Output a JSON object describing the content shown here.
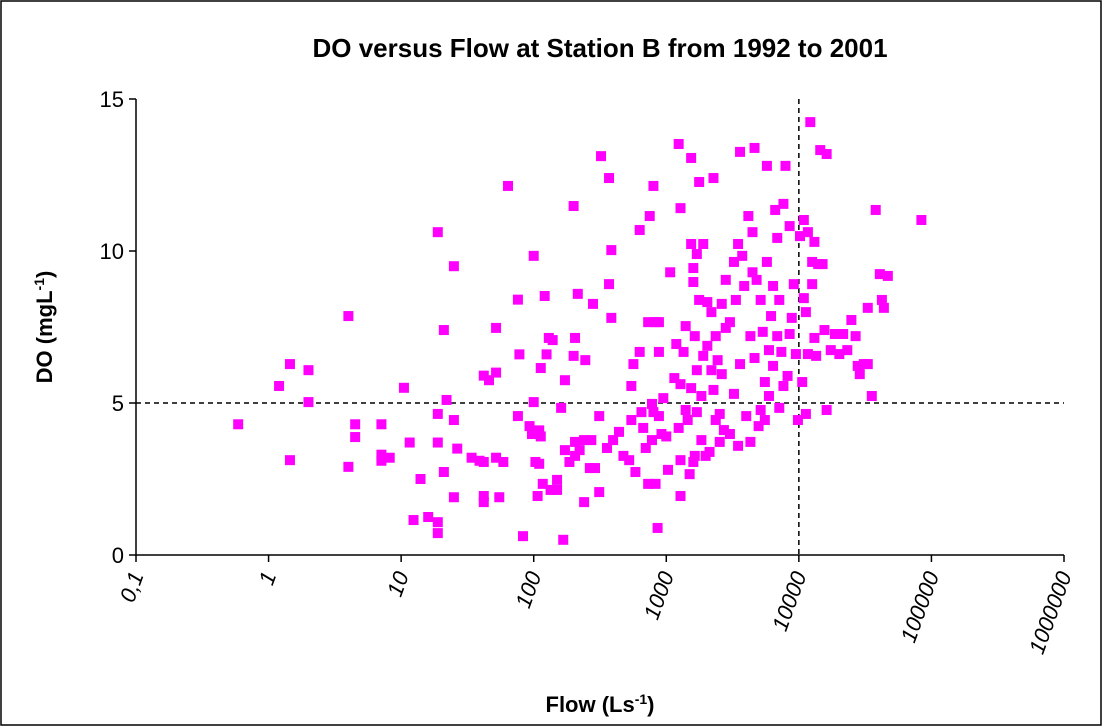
{
  "chart_data": {
    "type": "scatter",
    "title": "DO versus Flow at Station B from 1992 to 2001",
    "xlabel": [
      "Flow (Ls",
      "-1",
      ")"
    ],
    "ylabel": [
      "DO (mgL",
      "-1",
      ")"
    ],
    "xscale": "log",
    "xlim": [
      0.1,
      1000000
    ],
    "xticks": [
      {
        "value": 0.1,
        "label": "0,1"
      },
      1,
      10,
      100,
      1000,
      10000,
      100000,
      1000000
    ],
    "ylim": [
      0,
      15
    ],
    "yticks": [
      0,
      5,
      10,
      15
    ],
    "color": "#ff00ff",
    "reference_lines": [
      {
        "axis": "x",
        "value": 10000
      },
      {
        "axis": "y",
        "value": 5
      }
    ],
    "x": [
      0.59,
      1.2,
      1.45,
      1.45,
      2.0,
      2.0,
      4.0,
      4.0,
      4.5,
      4.5,
      7.1,
      7.1,
      7.1,
      8.2,
      10.5,
      11.6,
      12.4,
      14,
      16,
      18.9,
      18.9,
      18.9,
      18.9,
      18.9,
      21,
      21,
      22,
      25,
      25,
      25,
      26.5,
      34,
      39,
      42,
      42,
      42,
      42,
      46,
      52,
      52,
      52,
      55,
      59,
      64,
      76,
      76,
      78,
      83,
      93,
      97,
      100,
      100,
      103,
      107,
      110,
      110,
      113,
      113,
      117,
      121,
      125,
      130,
      134,
      139,
      150,
      150,
      161,
      167,
      172,
      172,
      186,
      200,
      200,
      205,
      205,
      205,
      215,
      222,
      240,
      240,
      245,
      265,
      272,
      280,
      290,
      312,
      312,
      322,
      357,
      370,
      370,
      385,
      385,
      397,
      440,
      475,
      525,
      545,
      545,
      565,
      585,
      630,
      630,
      650,
      670,
      700,
      730,
      730,
      750,
      780,
      780,
      800,
      800,
      830,
      830,
      860,
      880,
      880,
      880,
      920,
      950,
      1000,
      1030,
      1070,
      1150,
      1190,
      1240,
      1240,
      1280,
      1280,
      1280,
      1280,
      1350,
      1400,
      1400,
      1450,
      1500,
      1540,
      1540,
      1540,
      1600,
      1600,
      1600,
      1640,
      1640,
      1700,
      1700,
      1700,
      1770,
      1770,
      1840,
      1840,
      1900,
      1900,
      1980,
      2040,
      2040,
      2120,
      2190,
      2190,
      2270,
      2270,
      2360,
      2360,
      2440,
      2530,
      2530,
      2620,
      2620,
      2720,
      2810,
      2810,
      3020,
      3020,
      3240,
      3240,
      3350,
      3480,
      3480,
      3600,
      3600,
      3740,
      3870,
      4010,
      4160,
      4310,
      4310,
      4470,
      4470,
      4630,
      4630,
      4800,
      4970,
      5150,
      5150,
      5340,
      5540,
      5540,
      5740,
      5740,
      5950,
      5950,
      6170,
      6390,
      6390,
      6630,
      6870,
      6870,
      7120,
      7120,
      7380,
      7650,
      7650,
      7930,
      8220,
      8520,
      8520,
      8840,
      9160,
      9500,
      9840,
      10200,
      10600,
      10900,
      10900,
      11300,
      11300,
      11700,
      11700,
      12200,
      12600,
      12600,
      13100,
      13100,
      13500,
      14000,
      14500,
      15100,
      15600,
      16200,
      16200,
      17400,
      18700,
      20200,
      21600,
      23200,
      24900,
      26800,
      27800,
      28800,
      30900,
      33100,
      33100,
      35500,
      38000,
      40800,
      42300,
      43800,
      46900,
      84000
    ],
    "values": [
      4.3,
      5.56,
      6.28,
      3.12,
      6.08,
      5.03,
      7.86,
      2.9,
      4.3,
      3.88,
      4.3,
      3.3,
      3.1,
      3.2,
      5.5,
      3.7,
      1.15,
      2.5,
      1.25,
      10.62,
      4.64,
      3.7,
      1.08,
      0.72,
      7.4,
      2.73,
      5.1,
      9.5,
      4.44,
      1.9,
      3.5,
      3.2,
      3.1,
      5.9,
      3.06,
      1.94,
      1.74,
      5.75,
      7.47,
      6.0,
      3.2,
      1.9,
      3.06,
      12.14,
      4.57,
      8.4,
      6.6,
      0.62,
      4.24,
      3.98,
      9.84,
      5.03,
      3.06,
      1.94,
      4.1,
      3.0,
      6.15,
      3.9,
      2.34,
      8.52,
      6.6,
      7.14,
      2.14,
      7.07,
      2.47,
      2.14,
      4.84,
      0.5,
      5.75,
      3.45,
      3.06,
      11.48,
      6.55,
      7.14,
      3.72,
      3.26,
      8.59,
      3.45,
      3.78,
      1.74,
      6.41,
      2.86,
      3.78,
      8.26,
      2.86,
      4.57,
      2.07,
      13.12,
      3.52,
      12.4,
      8.91,
      10.03,
      7.8,
      3.78,
      4.05,
      3.26,
      3.12,
      5.56,
      4.44,
      6.28,
      2.73,
      10.69,
      6.68,
      4.7,
      4.18,
      3.52,
      7.66,
      2.34,
      11.15,
      3.78,
      4.97,
      12.14,
      4.7,
      7.66,
      2.34,
      0.89,
      6.68,
      7.66,
      4.57,
      3.98,
      5.16,
      3.9,
      2.8,
      9.3,
      5.82,
      6.94,
      13.52,
      4.18,
      11.41,
      5.62,
      3.12,
      1.94,
      6.68,
      7.53,
      4.77,
      4.44,
      2.66,
      13.06,
      10.23,
      5.49,
      3.06,
      9.44,
      8.98,
      7.2,
      3.26,
      9.9,
      6.08,
      4.7,
      12.27,
      8.39,
      3.78,
      5.23,
      10.23,
      6.55,
      3.26,
      8.32,
      6.88,
      3.39,
      7.99,
      6.08,
      12.4,
      5.43,
      7.2,
      4.44,
      6.41,
      4.64,
      3.72,
      8.26,
      5.95,
      4.11,
      9.05,
      7.47,
      7.66,
      3.98,
      9.64,
      5.3,
      8.39,
      10.23,
      3.59,
      6.28,
      13.26,
      9.84,
      8.85,
      4.57,
      11.15,
      7.2,
      3.72,
      10.62,
      9.3,
      13.39,
      6.48,
      9.05,
      4.24,
      4.77,
      8.39,
      7.34,
      5.69,
      4.44,
      9.64,
      12.8,
      5.23,
      6.74,
      7.86,
      6.22,
      8.85,
      11.35,
      10.43,
      7.2,
      4.84,
      8.39,
      6.68,
      5.56,
      11.55,
      12.8,
      5.89,
      10.82,
      7.27,
      7.8,
      8.91,
      6.61,
      4.44,
      10.49,
      5.69,
      11.02,
      8.45,
      7.99,
      4.64,
      6.61,
      10.62,
      14.24,
      8.91,
      9.64,
      10.3,
      7.14,
      6.55,
      9.57,
      13.32,
      9.57,
      7.4,
      13.19,
      4.77,
      6.74,
      7.27,
      6.61,
      7.27,
      6.74,
      7.73,
      7.2,
      6.22,
      5.95,
      6.28,
      8.13,
      6.28,
      5.23,
      11.35,
      9.24,
      8.39,
      8.13,
      9.18,
      11.02
    ]
  }
}
